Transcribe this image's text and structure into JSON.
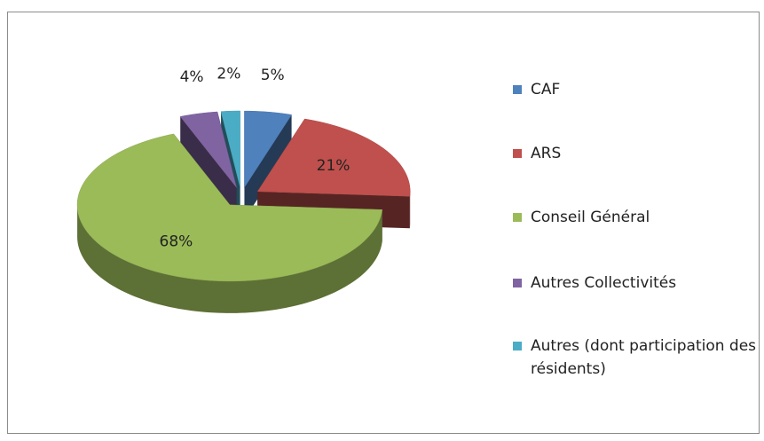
{
  "chart_data": {
    "type": "pie",
    "categories": [
      "CAF",
      "ARS",
      "Conseil Général",
      "Autres Collectivités",
      "Autres (dont participation des résidents)"
    ],
    "values": [
      5,
      21,
      68,
      4,
      2
    ],
    "value_labels": [
      "5%",
      "21%",
      "68%",
      "4%",
      "2%"
    ],
    "colors": [
      "#4f81bd",
      "#c0504d",
      "#9bbb59",
      "#8064a2",
      "#4bacc6"
    ],
    "legend": "right"
  }
}
